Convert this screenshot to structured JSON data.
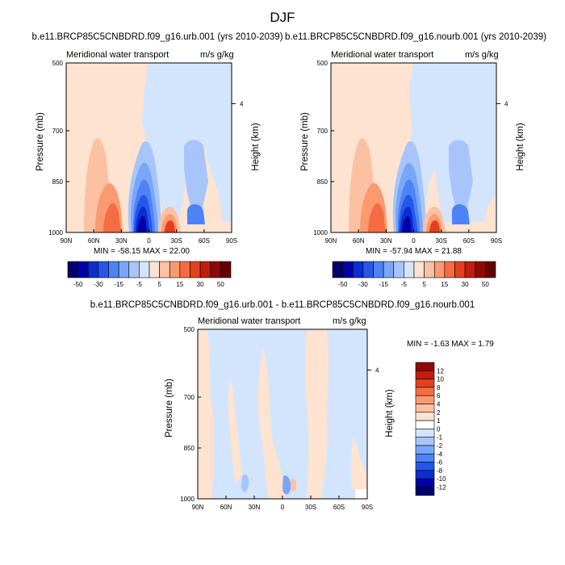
{
  "figure": {
    "suptitle": "DJF"
  },
  "chart_data": [
    {
      "id": "urb",
      "type": "heatmap",
      "title": "b.e11.BRCP85C5CNBDRD.f09_g16.urb.001 (yrs 2010-2039)",
      "left_string": "Meridional water transport",
      "right_string": "m/s g/kg",
      "ylabel": "Pressure (mb)",
      "ylabel_right": "Height (km)",
      "x_ticks": [
        "90N",
        "60N",
        "30N",
        "0",
        "30S",
        "60S",
        "90S"
      ],
      "y_ticks": [
        "500",
        "700",
        "850",
        "1000"
      ],
      "y_right_ticks": [
        "4"
      ],
      "min_max_text": "MIN = -58.15   MAX =  22.00",
      "min": -58.15,
      "max": 22.0,
      "colorbar_labels": [
        "-50",
        "-30",
        "-15",
        "-5",
        "5",
        "15",
        "30",
        "50"
      ]
    },
    {
      "id": "nourb",
      "type": "heatmap",
      "title": "b.e11.BRCP85C5CNBDRD.f09_g16.nourb.001 (yrs 2010-2039)",
      "left_string": "Meridional water transport",
      "right_string": "m/s g/kg",
      "ylabel": "Pressure (mb)",
      "ylabel_right": "Height (km)",
      "x_ticks": [
        "90N",
        "60N",
        "30N",
        "0",
        "30S",
        "60S",
        "90S"
      ],
      "y_ticks": [
        "500",
        "700",
        "850",
        "1000"
      ],
      "y_right_ticks": [
        "4"
      ],
      "min_max_text": "MIN = -57.94   MAX =  21.88",
      "min": -57.94,
      "max": 21.88,
      "colorbar_labels": [
        "-50",
        "-30",
        "-15",
        "-5",
        "5",
        "15",
        "30",
        "50"
      ]
    },
    {
      "id": "diff",
      "type": "heatmap",
      "title": "b.e11.BRCP85C5CNBDRD.f09_g16.urb.001 - b.e11.BRCP85C5CNBDRD.f09_g16.nourb.001",
      "left_string": "Meridional water transport",
      "right_string": "m/s g/kg",
      "ylabel": "Pressure (mb)",
      "ylabel_right": "Height (km)",
      "x_ticks": [
        "90N",
        "60N",
        "30N",
        "0",
        "30S",
        "60S",
        "90S"
      ],
      "y_ticks": [
        "500",
        "700",
        "850",
        "1000"
      ],
      "y_right_ticks": [
        "4"
      ],
      "min_max_text": "MIN =  -1.63   MAX =   1.79",
      "min": -1.63,
      "max": 1.79,
      "colorbar_labels": [
        "12",
        "10",
        "8",
        "6",
        "4",
        "2",
        "1",
        "0",
        "-1",
        "-2",
        "-4",
        "-6",
        "-8",
        "-10",
        "-12"
      ]
    }
  ],
  "palettes": {
    "main": [
      "#00006b",
      "#0000a8",
      "#0a2ed1",
      "#2657ea",
      "#4d83f5",
      "#7aa6f9",
      "#a8c5fb",
      "#d3e5fc",
      "#fde3d0",
      "#fcc1a3",
      "#fa9a70",
      "#f56c42",
      "#e4401f",
      "#bf1e0c",
      "#8f0707",
      "#650000"
    ],
    "diff": [
      "#8f0707",
      "#bf1e0c",
      "#e4401f",
      "#f56c42",
      "#fa9a70",
      "#fcc1a3",
      "#fde3d0",
      "#ffffff",
      "#d3e5fc",
      "#a8c5fb",
      "#7aa6f9",
      "#4d83f5",
      "#2657ea",
      "#0a2ed1",
      "#0000a8",
      "#00006b"
    ]
  }
}
